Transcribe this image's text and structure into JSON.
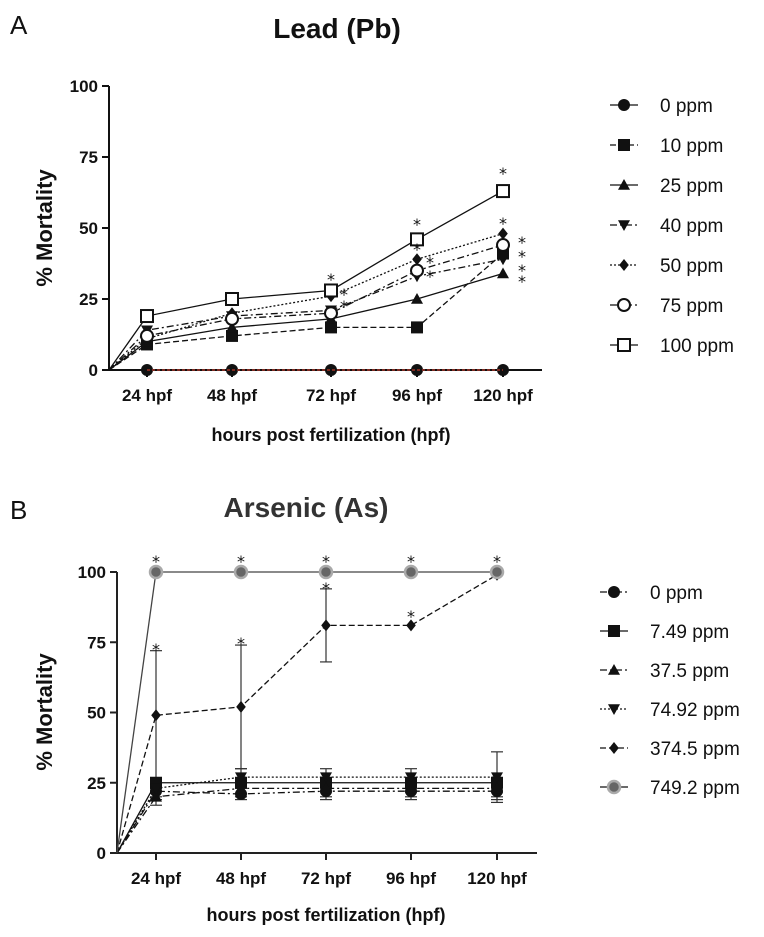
{
  "chart_data": [
    {
      "type": "line",
      "panel": "A",
      "title": "Lead (Pb)",
      "xlabel": "hours post fertilization (hpf)",
      "ylabel": "% Mortality",
      "categories": [
        "24 hpf",
        "48 hpf",
        "72 hpf",
        "96 hpf",
        "120 hpf"
      ],
      "ylim": [
        0,
        100
      ],
      "yticks": [
        0,
        25,
        50,
        75,
        100
      ],
      "starts_at_origin": true,
      "legend_position": "right",
      "series": [
        {
          "name": "0 ppm",
          "marker": "circle-filled",
          "dash": "solid",
          "values": [
            0,
            0,
            0,
            0,
            0
          ],
          "stars": [
            false,
            false,
            false,
            false,
            false
          ]
        },
        {
          "name": "10 ppm",
          "marker": "square-filled",
          "dash": "dashed",
          "values": [
            9,
            12,
            15,
            15,
            41
          ],
          "stars": [
            false,
            false,
            false,
            false,
            true
          ]
        },
        {
          "name": "25 ppm",
          "marker": "triangle-up-filled",
          "dash": "solid",
          "values": [
            10,
            15,
            18,
            25,
            34
          ],
          "stars": [
            false,
            false,
            false,
            false,
            true
          ]
        },
        {
          "name": "40 ppm",
          "marker": "triangle-down-filled",
          "dash": "dashdot",
          "values": [
            14,
            19,
            21,
            33,
            39
          ],
          "stars": [
            false,
            false,
            true,
            true,
            true
          ]
        },
        {
          "name": "50 ppm",
          "marker": "diamond-filled",
          "dash": "dotted",
          "values": [
            11,
            20,
            26,
            39,
            48
          ],
          "stars": [
            false,
            false,
            true,
            true,
            true
          ]
        },
        {
          "name": "75 ppm",
          "marker": "circle-open",
          "dash": "dashdot",
          "values": [
            12,
            18,
            20,
            35,
            44
          ],
          "stars": [
            false,
            false,
            false,
            true,
            true
          ]
        },
        {
          "name": "100 ppm",
          "marker": "square-open",
          "dash": "solid",
          "values": [
            19,
            25,
            28,
            46,
            63
          ],
          "stars": [
            false,
            false,
            true,
            true,
            true
          ]
        }
      ]
    },
    {
      "type": "line",
      "panel": "B",
      "title": "Arsenic (As)",
      "xlabel": "hours post fertilization (hpf)",
      "ylabel": "% Mortality",
      "categories": [
        "24 hpf",
        "48 hpf",
        "72 hpf",
        "96 hpf",
        "120 hpf"
      ],
      "ylim": [
        0,
        100
      ],
      "yticks": [
        0,
        25,
        50,
        75,
        100
      ],
      "starts_at_origin": true,
      "legend_position": "right",
      "series": [
        {
          "name": "0 ppm",
          "marker": "circle-filled",
          "dash": "dashdot",
          "values": [
            22,
            21,
            22,
            22,
            22
          ],
          "error": [
            3,
            2,
            3,
            3,
            3
          ],
          "stars": [
            false,
            false,
            false,
            false,
            false
          ]
        },
        {
          "name": "7.49 ppm",
          "marker": "square-filled",
          "dash": "solid",
          "values": [
            25,
            25,
            25,
            25,
            25
          ],
          "error": [
            0,
            0,
            0,
            0,
            0
          ],
          "stars": [
            false,
            false,
            false,
            false,
            false
          ]
        },
        {
          "name": "37.5 ppm",
          "marker": "triangle-up-filled",
          "dash": "dashdot",
          "values": [
            20,
            23,
            23,
            23,
            23
          ],
          "error": [
            3,
            3,
            3,
            3,
            3
          ],
          "stars": [
            false,
            false,
            false,
            false,
            false
          ]
        },
        {
          "name": "74.92 ppm",
          "marker": "triangle-down-filled",
          "dash": "dotted",
          "values": [
            23,
            27,
            27,
            27,
            27
          ],
          "error": [
            3,
            3,
            3,
            3,
            9
          ],
          "stars": [
            false,
            false,
            false,
            false,
            false
          ]
        },
        {
          "name": "374.5 ppm",
          "marker": "diamond-filled",
          "dash": "dashed",
          "values": [
            49,
            52,
            81,
            81,
            99
          ],
          "error": [
            23,
            22,
            13,
            0,
            0
          ],
          "stars": [
            true,
            true,
            true,
            true,
            false
          ]
        },
        {
          "name": "749.2 ppm",
          "marker": "circle-gray",
          "dash": "solid",
          "values": [
            100,
            100,
            100,
            100,
            100
          ],
          "error": [
            0,
            0,
            0,
            0,
            0
          ],
          "stars": [
            true,
            true,
            true,
            true,
            true
          ]
        }
      ]
    }
  ]
}
